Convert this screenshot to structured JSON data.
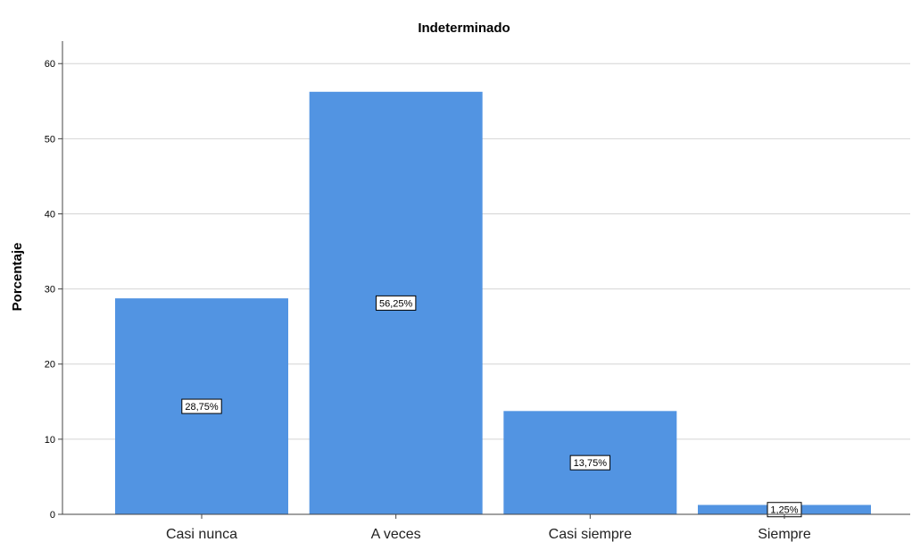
{
  "chart_data": {
    "type": "bar",
    "title": "Indeterminado",
    "xlabel": "",
    "ylabel": "Porcentaje",
    "categories": [
      "Casi nunca",
      "A veces",
      "Casi siempre",
      "Siempre"
    ],
    "values": [
      28.75,
      56.25,
      13.75,
      1.25
    ],
    "data_labels": [
      "28,75%",
      "56,25%",
      "13,75%",
      "1,25%"
    ],
    "ylim": [
      0,
      63
    ],
    "yticks": [
      0,
      10,
      20,
      30,
      40,
      50,
      60
    ],
    "grid": true,
    "bar_color": "#5294e2",
    "grid_color": "#d4d4d4"
  }
}
